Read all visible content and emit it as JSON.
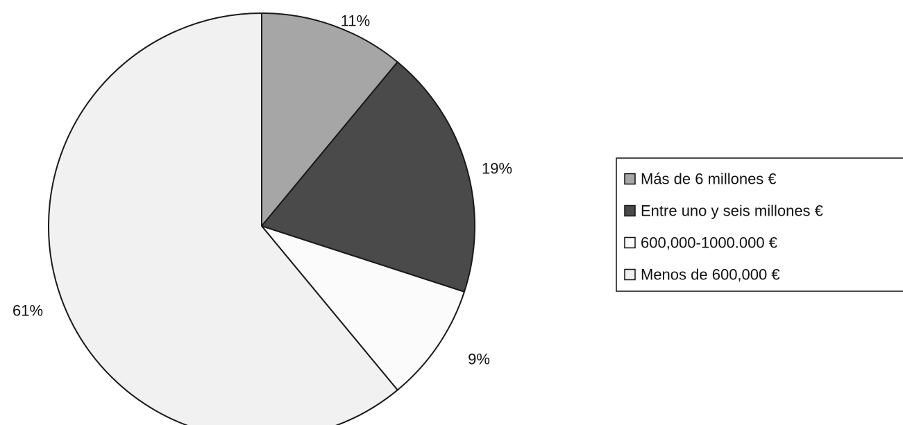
{
  "chart_data": {
    "type": "pie",
    "title": "",
    "categories": [
      "Más de 6 millones €",
      "Entre uno y seis millones €",
      "600,000-1000.000 €",
      "Menos de 600,000 €"
    ],
    "values": [
      11,
      19,
      9,
      61
    ],
    "labels": [
      "11%",
      "19%",
      "9%",
      "61%"
    ],
    "colors": [
      "#a6a6a6",
      "#4a4a4a",
      "#fbfbfb",
      "#f1f1f1"
    ],
    "start_angle": "12 o'clock",
    "direction": "clockwise",
    "legend_position": "right"
  }
}
